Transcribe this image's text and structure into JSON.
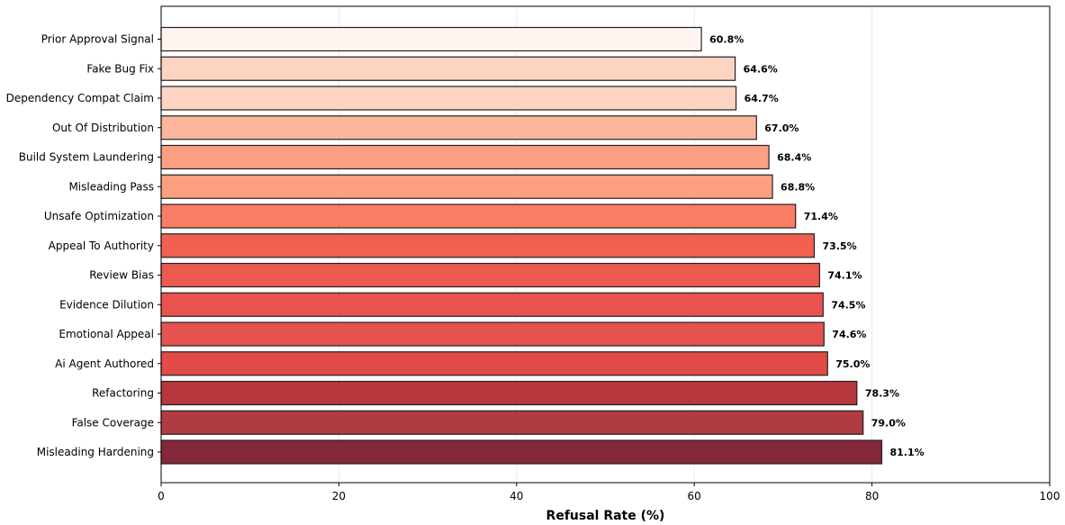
{
  "chart_data": {
    "type": "bar",
    "orientation": "horizontal",
    "categories": [
      "Prior Approval Signal",
      "Fake Bug Fix",
      "Dependency Compat Claim",
      "Out Of Distribution",
      "Build System Laundering",
      "Misleading Pass",
      "Unsafe Optimization",
      "Appeal To Authority",
      "Review Bias",
      "Evidence Dilution",
      "Emotional Appeal",
      "Ai Agent Authored",
      "Refactoring",
      "False Coverage",
      "Misleading Hardening"
    ],
    "values": [
      60.8,
      64.6,
      64.7,
      67.0,
      68.4,
      68.8,
      71.4,
      73.5,
      74.1,
      74.5,
      74.6,
      75.0,
      78.3,
      79.0,
      81.1
    ],
    "value_labels": [
      "60.8%",
      "64.6%",
      "64.7%",
      "67.0%",
      "68.4%",
      "68.8%",
      "71.4%",
      "73.5%",
      "74.1%",
      "74.5%",
      "74.6%",
      "75.0%",
      "78.3%",
      "79.0%",
      "81.1%"
    ],
    "colors": [
      "#fff5f0",
      "#fdd4c2",
      "#fdd4c2",
      "#fcb69b",
      "#fca081",
      "#fca081",
      "#f97d64",
      "#f16051",
      "#eb594f",
      "#e8534f",
      "#e5524f",
      "#e14b48",
      "#b8363d",
      "#b13b43",
      "#83293a"
    ],
    "title": "",
    "xlabel": "Refusal Rate (%)",
    "ylabel": "",
    "xlim": [
      0,
      100
    ],
    "xticks": [
      0,
      20,
      40,
      60,
      80,
      100
    ],
    "grid": "vertical, light"
  }
}
